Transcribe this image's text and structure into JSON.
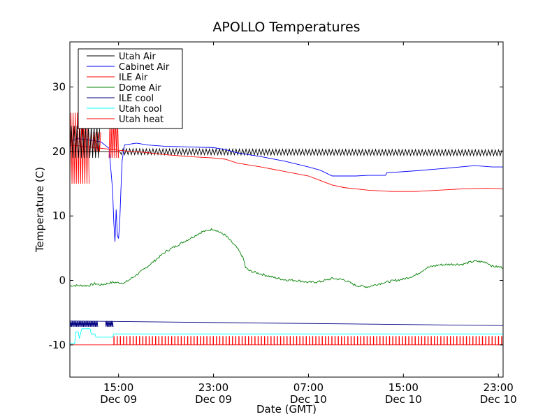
{
  "chart_data": {
    "type": "line",
    "title": "APOLLO Temperatures",
    "xlabel": "Date (GMT)",
    "ylabel": "Temperature (C)",
    "x_units": "hours since Dec 09 00:00 GMT",
    "xlim": [
      10.9,
      47.4
    ],
    "ylim": [
      -15,
      37
    ],
    "y_ticks": [
      {
        "value": -10,
        "label": "-10"
      },
      {
        "value": 0,
        "label": "0"
      },
      {
        "value": 10,
        "label": "10"
      },
      {
        "value": 20,
        "label": "20"
      },
      {
        "value": 30,
        "label": "30"
      }
    ],
    "x_ticks": [
      {
        "value": 15,
        "time": "15:00",
        "date": "Dec 09"
      },
      {
        "value": 23,
        "time": "23:00",
        "date": "Dec 09"
      },
      {
        "value": 31,
        "time": "07:00",
        "date": "Dec 10"
      },
      {
        "value": 39,
        "time": "15:00",
        "date": "Dec 10"
      },
      {
        "value": 47,
        "time": "23:00",
        "date": "Dec 10"
      }
    ],
    "legend_position": "top-left",
    "series": [
      {
        "name": "Utah Air",
        "color": "#000000",
        "style": "oscillating",
        "base": [
          [
            10.9,
            20
          ],
          [
            47.4,
            19.8
          ]
        ],
        "amplitude": 0.45,
        "period": 0.28
      },
      {
        "name": "Cabinet Air",
        "color": "#0000ff",
        "style": "line",
        "points": [
          [
            10.9,
            21.5
          ],
          [
            11.5,
            22
          ],
          [
            12.5,
            21.8
          ],
          [
            13.5,
            21.5
          ],
          [
            14.2,
            20.5
          ],
          [
            14.5,
            14
          ],
          [
            14.6,
            9
          ],
          [
            14.7,
            6
          ],
          [
            14.8,
            11
          ],
          [
            14.9,
            7
          ],
          [
            15,
            6.5
          ],
          [
            15.1,
            9
          ],
          [
            15.2,
            14
          ],
          [
            15.3,
            18.5
          ],
          [
            15.5,
            21
          ],
          [
            16.5,
            21.3
          ],
          [
            17.5,
            21
          ],
          [
            19,
            20.8
          ],
          [
            21,
            20.7
          ],
          [
            23,
            20.6
          ],
          [
            24,
            20.3
          ],
          [
            25,
            19.8
          ],
          [
            27,
            19.2
          ],
          [
            29,
            18.5
          ],
          [
            31,
            17.6
          ],
          [
            32,
            17.1
          ],
          [
            33,
            16.2
          ],
          [
            35,
            16.2
          ],
          [
            36,
            16.3
          ],
          [
            37.5,
            16.3
          ],
          [
            37.6,
            16.7
          ],
          [
            40,
            17
          ],
          [
            42,
            17.3
          ],
          [
            45,
            17.8
          ],
          [
            46.5,
            17.6
          ],
          [
            47.4,
            17.6
          ]
        ]
      },
      {
        "name": "ILE Air",
        "color": "#ff0000",
        "style": "line",
        "points": [
          [
            10.9,
            21
          ],
          [
            12,
            20.8
          ],
          [
            13,
            20.6
          ],
          [
            14,
            20.4
          ],
          [
            15,
            20.2
          ],
          [
            16,
            20
          ],
          [
            17,
            19.9
          ],
          [
            19,
            19.5
          ],
          [
            21,
            19.2
          ],
          [
            23,
            19
          ],
          [
            24,
            18.8
          ],
          [
            25,
            18.2
          ],
          [
            27,
            17.6
          ],
          [
            29,
            16.9
          ],
          [
            31,
            16.2
          ],
          [
            32,
            15.5
          ],
          [
            33,
            14.8
          ],
          [
            34,
            14.4
          ],
          [
            36,
            14
          ],
          [
            38,
            13.8
          ],
          [
            40,
            13.8
          ],
          [
            42,
            14
          ],
          [
            44,
            14.2
          ],
          [
            46,
            14.3
          ],
          [
            47.4,
            14.2
          ]
        ]
      },
      {
        "name": "Dome Air",
        "color": "#008000",
        "style": "noisy",
        "points": [
          [
            10.9,
            -0.8
          ],
          [
            12.5,
            -0.8
          ],
          [
            13,
            -0.5
          ],
          [
            13.5,
            -0.7
          ],
          [
            14.5,
            -0.3
          ],
          [
            15.5,
            -0.4
          ],
          [
            16,
            0.2
          ],
          [
            17,
            1.5
          ],
          [
            18,
            3
          ],
          [
            19,
            4.5
          ],
          [
            20,
            5.5
          ],
          [
            21,
            6.5
          ],
          [
            22,
            7.5
          ],
          [
            23,
            8
          ],
          [
            24,
            7
          ],
          [
            25,
            5
          ],
          [
            25.5,
            3.5
          ],
          [
            25.7,
            2
          ],
          [
            26,
            1.5
          ],
          [
            27,
            1
          ],
          [
            28,
            0.5
          ],
          [
            29,
            0.1
          ],
          [
            30,
            0
          ],
          [
            31,
            -0.3
          ],
          [
            32,
            -0.2
          ],
          [
            33,
            0.3
          ],
          [
            34,
            0.1
          ],
          [
            35,
            -0.8
          ],
          [
            36,
            -1
          ],
          [
            37,
            -0.5
          ],
          [
            38,
            -0.1
          ],
          [
            39,
            0.2
          ],
          [
            40,
            0.8
          ],
          [
            41,
            2
          ],
          [
            42,
            2.4
          ],
          [
            43,
            2.5
          ],
          [
            44,
            2.5
          ],
          [
            45,
            3
          ],
          [
            46,
            2.8
          ],
          [
            46.5,
            2.2
          ],
          [
            47.4,
            2
          ]
        ]
      },
      {
        "name": "ILE cool",
        "color": "#000080",
        "style": "line",
        "points": [
          [
            10.9,
            -6.3
          ],
          [
            47.4,
            -7
          ]
        ]
      },
      {
        "name": "Utah cool",
        "color": "#00ffff",
        "style": "line",
        "points": [
          [
            10.9,
            -9.8
          ],
          [
            11.3,
            -9.8
          ],
          [
            11.4,
            -8
          ],
          [
            11.6,
            -8
          ],
          [
            11.7,
            -9
          ],
          [
            11.9,
            -7.5
          ],
          [
            12.6,
            -7.5
          ],
          [
            12.7,
            -8.3
          ],
          [
            13,
            -8.3
          ],
          [
            13.1,
            -8.8
          ],
          [
            14.5,
            -8.8
          ],
          [
            14.6,
            -8.3
          ],
          [
            47.4,
            -8.3
          ]
        ]
      },
      {
        "name": "Utah heat",
        "color": "#ff0000",
        "style": "pulsed",
        "points": [
          [
            10.9,
            -10
          ],
          [
            47.4,
            -10
          ]
        ]
      }
    ]
  }
}
